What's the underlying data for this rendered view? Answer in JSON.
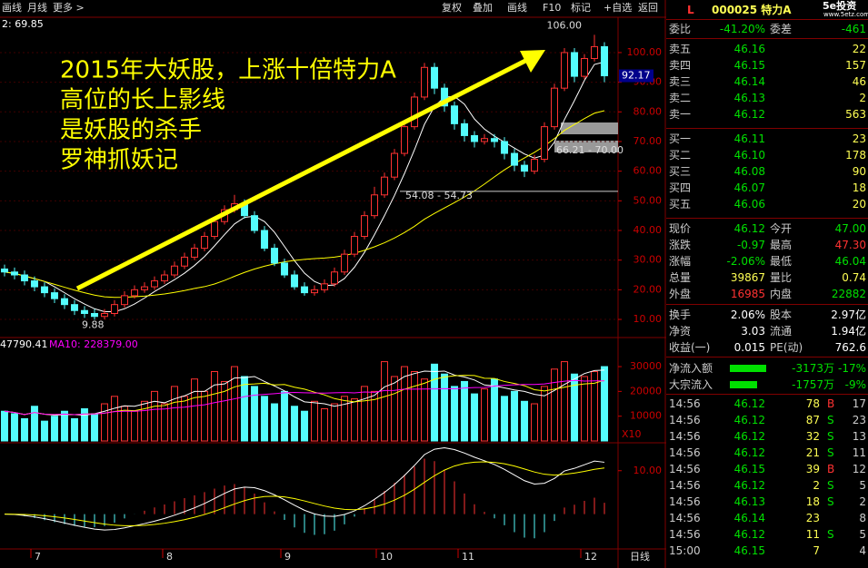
{
  "toolbar": {
    "left": [
      "画线",
      "月线",
      "更多 >"
    ],
    "right": [
      "复权",
      "叠加",
      "画线",
      "F10",
      "标记",
      "+自选",
      "返回"
    ]
  },
  "chart_data": {
    "type": "candlestick",
    "top_label": "2: 69.85",
    "annotations": [
      "2015年大妖股，上涨十倍特力A",
      "高位的长上影线",
      "是妖股的杀手",
      " 罗神抓妖记"
    ],
    "ylim": [
      4.5,
      111
    ],
    "yticks": [
      {
        "value": 10,
        "label": "10.00"
      },
      {
        "value": 20,
        "label": "20.00"
      },
      {
        "value": 30,
        "label": "30.00"
      },
      {
        "value": 40,
        "label": "40.00"
      },
      {
        "value": 50,
        "label": "50.00"
      },
      {
        "value": 60,
        "label": "60.00"
      },
      {
        "value": 70,
        "label": "70.00"
      },
      {
        "value": 80,
        "label": "80.00"
      },
      {
        "value": 90,
        "label": "90.00"
      },
      {
        "value": 100,
        "label": "100.00"
      }
    ],
    "last_price": {
      "value": 92.17,
      "label": "92.17"
    },
    "price_labels": [
      {
        "value": 106,
        "label": "106.00"
      },
      {
        "value": 9.88,
        "label": "9.88"
      },
      {
        "value": 54.73,
        "label": "54.08 - 54.73"
      },
      {
        "value": 70,
        "label": "66.21 - 70.00"
      }
    ],
    "candles": [
      [
        27,
        28.5,
        24.5,
        26
      ],
      [
        26,
        27.5,
        23.5,
        25
      ],
      [
        25,
        26.5,
        21.5,
        23
      ],
      [
        23,
        24.5,
        19.5,
        21
      ],
      [
        21,
        22.5,
        17.5,
        19
      ],
      [
        19,
        20.5,
        15.5,
        17
      ],
      [
        17,
        18.5,
        13.5,
        15
      ],
      [
        15,
        16.5,
        11.5,
        13
      ],
      [
        13,
        14.5,
        10.5,
        12
      ],
      [
        12,
        13.5,
        9.88,
        11
      ],
      [
        11,
        13.5,
        10,
        12
      ],
      [
        12,
        16.5,
        11,
        15
      ],
      [
        15,
        19.5,
        14,
        18
      ],
      [
        18,
        21.5,
        17,
        20
      ],
      [
        20,
        22.5,
        19,
        21
      ],
      [
        21,
        24.5,
        20,
        23
      ],
      [
        23,
        26.5,
        22,
        25
      ],
      [
        25,
        29.5,
        24,
        28
      ],
      [
        28,
        32.5,
        27,
        31
      ],
      [
        31,
        35.5,
        30,
        34
      ],
      [
        34,
        39.5,
        33,
        38
      ],
      [
        38,
        44.5,
        37,
        43
      ],
      [
        43,
        48.5,
        42,
        47
      ],
      [
        47,
        52,
        46,
        49
      ],
      [
        49,
        50.5,
        44,
        45
      ],
      [
        45,
        46.5,
        39,
        40
      ],
      [
        40,
        41.5,
        33,
        34
      ],
      [
        34,
        35.5,
        28,
        29
      ],
      [
        29,
        30.5,
        24,
        25
      ],
      [
        25,
        26.5,
        20,
        21
      ],
      [
        21,
        22.5,
        18,
        19
      ],
      [
        19,
        21.5,
        18,
        20
      ],
      [
        20,
        23.5,
        19,
        22
      ],
      [
        22,
        27.5,
        21,
        26
      ],
      [
        26,
        33.5,
        25,
        32
      ],
      [
        32,
        39.5,
        31,
        38
      ],
      [
        38,
        46.5,
        37,
        45
      ],
      [
        45,
        54.73,
        44,
        52
      ],
      [
        52,
        59.5,
        51,
        58
      ],
      [
        58,
        67.5,
        57,
        66
      ],
      [
        66,
        76.5,
        65,
        75
      ],
      [
        75,
        86.5,
        74,
        85
      ],
      [
        85,
        96.5,
        84,
        95
      ],
      [
        95,
        96.5,
        86,
        88
      ],
      [
        88,
        89.5,
        80,
        82
      ],
      [
        82,
        83.5,
        74,
        76
      ],
      [
        76,
        77.5,
        70,
        72
      ],
      [
        72,
        73.5,
        68,
        70
      ],
      [
        70,
        72.5,
        69,
        71
      ],
      [
        71,
        72.5,
        68,
        70
      ],
      [
        70,
        71.5,
        64,
        66
      ],
      [
        66,
        67.5,
        60,
        62
      ],
      [
        62,
        63.5,
        58,
        60
      ],
      [
        60,
        65.5,
        59,
        64
      ],
      [
        64,
        76.5,
        63,
        75
      ],
      [
        75,
        89.5,
        74,
        88
      ],
      [
        88,
        101.5,
        87,
        100
      ],
      [
        100,
        101.5,
        90,
        92
      ],
      [
        92,
        99.5,
        91,
        98
      ],
      [
        98,
        106,
        97,
        102
      ],
      [
        102,
        103.5,
        90,
        92.17
      ]
    ],
    "volume": {
      "legend": [
        "47790.41",
        "MA10: 228379.00"
      ],
      "ylim": [
        0,
        41000
      ],
      "yticks": [
        10000,
        20000,
        30000
      ],
      "unit": "X10",
      "values": [
        12000,
        11000,
        9000,
        14000,
        8000,
        10000,
        12000,
        9000,
        13000,
        11000,
        15000,
        18000,
        14000,
        12000,
        16000,
        20000,
        15000,
        22000,
        18000,
        25000,
        20000,
        28000,
        24000,
        30000,
        26000,
        22000,
        18000,
        15000,
        20000,
        14000,
        12000,
        16000,
        13000,
        15000,
        18000,
        17000,
        22000,
        20000,
        32000,
        26000,
        30000,
        28000,
        25000,
        31000,
        27000,
        22000,
        24000,
        19000,
        21000,
        25000,
        18000,
        20000,
        16000,
        15000,
        22000,
        29000,
        32000,
        27000,
        26000,
        28000,
        30000
      ]
    },
    "macd": {
      "ylim": [
        -8,
        16
      ],
      "yticks": [
        {
          "value": 10,
          "label": "10.00"
        }
      ]
    },
    "months": [
      "7",
      "8",
      "9",
      "10",
      "11",
      "12"
    ],
    "period": "日线"
  },
  "quote": {
    "flag": "L",
    "code_name": "000025 特力A",
    "logo": "5e投资",
    "logo_url": "www.5etz.com",
    "ratio": [
      "委比",
      "-41.20%",
      "委差",
      "-461"
    ],
    "asks": [
      [
        "卖五",
        "46.16",
        "22"
      ],
      [
        "卖四",
        "46.15",
        "157"
      ],
      [
        "卖三",
        "46.14",
        "46"
      ],
      [
        "卖二",
        "46.13",
        "2"
      ],
      [
        "卖一",
        "46.12",
        "563"
      ]
    ],
    "bids": [
      [
        "买一",
        "46.11",
        "23"
      ],
      [
        "买二",
        "46.10",
        "178"
      ],
      [
        "买三",
        "46.08",
        "90"
      ],
      [
        "买四",
        "46.07",
        "18"
      ],
      [
        "买五",
        "46.06",
        "20"
      ]
    ],
    "stats": [
      [
        "现价",
        "46.12",
        "今开",
        "47.00"
      ],
      [
        "涨跌",
        "-0.97",
        "最高",
        "47.30"
      ],
      [
        "涨幅",
        "-2.06%",
        "最低",
        "46.04"
      ],
      [
        "总量",
        "39867",
        "量比",
        "0.74"
      ],
      [
        "外盘",
        "16985",
        "内盘",
        "22882"
      ]
    ],
    "stats2": [
      [
        "换手",
        "2.06%",
        "股本",
        "2.97亿"
      ],
      [
        "净资",
        "3.03",
        "流通",
        "1.94亿"
      ],
      [
        "收益(一)",
        "0.015",
        "PE(动)",
        "762.6"
      ]
    ],
    "flows": [
      [
        "净流入额",
        "-3173万",
        "-17%"
      ],
      [
        "大宗流入",
        "-1757万",
        "-9%"
      ]
    ],
    "trades": [
      [
        "14:56",
        "46.12",
        "78",
        "B",
        "17"
      ],
      [
        "14:56",
        "46.12",
        "87",
        "S",
        "23"
      ],
      [
        "14:56",
        "46.12",
        "32",
        "S",
        "13"
      ],
      [
        "14:56",
        "46.12",
        "21",
        "S",
        "11"
      ],
      [
        "14:56",
        "46.15",
        "39",
        "B",
        "12"
      ],
      [
        "14:56",
        "46.12",
        "2",
        "S",
        "5"
      ],
      [
        "14:56",
        "46.13",
        "18",
        "S",
        "2"
      ],
      [
        "14:56",
        "46.14",
        "23",
        "8"
      ],
      [
        "14:56",
        "46.12",
        "11",
        "S",
        "5"
      ],
      [
        "15:00",
        "46.15",
        "7",
        "4"
      ]
    ]
  }
}
